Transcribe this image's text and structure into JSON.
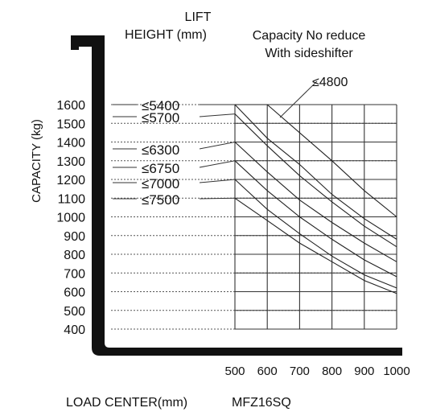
{
  "chart_data": {
    "type": "line",
    "title_lines": [
      "LIFT",
      "HEIGHT (mm)"
    ],
    "subtitle_lines": [
      "Capacity No reduce",
      "With sideshifter"
    ],
    "ylabel": "CAPACITY (kg)",
    "xlabel": "LOAD CENTER(mm)",
    "model": "MFZ16SQ",
    "x_ticks": [
      500,
      600,
      700,
      800,
      900,
      1000
    ],
    "y_ticks": [
      1600,
      1500,
      1400,
      1300,
      1200,
      1100,
      1000,
      900,
      800,
      700,
      600,
      500,
      400
    ],
    "xlim": [
      500,
      1000
    ],
    "ylim": [
      400,
      1600
    ],
    "series": [
      {
        "name": "≤4800",
        "x": [
          500,
          600,
          700,
          800,
          900,
          1000
        ],
        "y": [
          1600,
          1600,
          1450,
          1300,
          1140,
          1000
        ]
      },
      {
        "name": "≤5400",
        "x": [
          500,
          600,
          700,
          800,
          900,
          1000
        ],
        "y": [
          1600,
          1420,
          1280,
          1120,
          990,
          880
        ]
      },
      {
        "name": "≤5700",
        "x": [
          500,
          600,
          700,
          800,
          900,
          1000
        ],
        "y": [
          1550,
          1380,
          1220,
          1080,
          950,
          840
        ]
      },
      {
        "name": "≤6300",
        "x": [
          500,
          600,
          700,
          800,
          900,
          1000
        ],
        "y": [
          1400,
          1240,
          1090,
          970,
          860,
          760
        ]
      },
      {
        "name": "≤6750",
        "x": [
          500,
          600,
          700,
          800,
          900,
          1000
        ],
        "y": [
          1300,
          1140,
          1000,
          880,
          770,
          680
        ]
      },
      {
        "name": "≤7000",
        "x": [
          500,
          600,
          700,
          800,
          900,
          1000
        ],
        "y": [
          1200,
          1040,
          910,
          790,
          690,
          620
        ]
      },
      {
        "name": "≤7500",
        "x": [
          500,
          600,
          700,
          800,
          900,
          1000
        ],
        "y": [
          1100,
          980,
          860,
          760,
          660,
          590
        ]
      }
    ],
    "grid": true
  }
}
